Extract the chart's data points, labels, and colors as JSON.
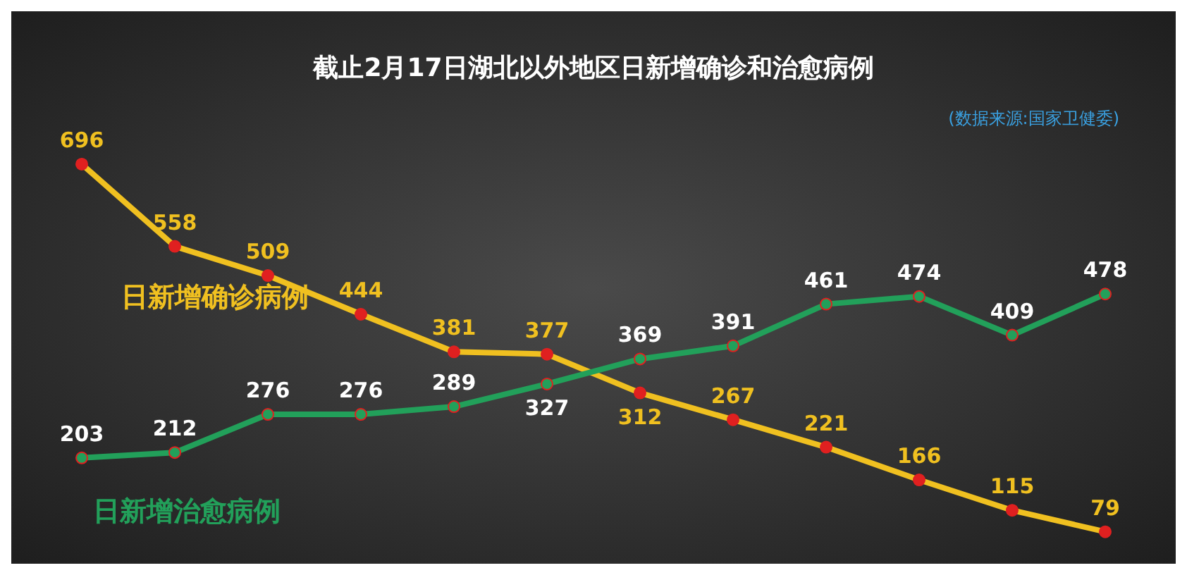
{
  "chart_data": {
    "type": "line",
    "title": "截止2月17日湖北以外地区日新增确诊和治愈病例",
    "annotations": [
      "(数据来源:国家卫健委)"
    ],
    "categories": [
      null,
      null,
      null,
      null,
      null,
      null,
      null,
      null,
      null,
      null,
      null,
      null
    ],
    "series": [
      {
        "name": "日新增确诊病例",
        "color": "#f0c020",
        "values": [
          696,
          558,
          509,
          444,
          381,
          377,
          312,
          267,
          221,
          166,
          115,
          79
        ]
      },
      {
        "name": "日新增治愈病例",
        "color": "#22a05a",
        "values": [
          203,
          212,
          276,
          276,
          289,
          327,
          369,
          391,
          461,
          474,
          409,
          478
        ]
      }
    ],
    "data_labels": true,
    "marker": "circle",
    "legend": false,
    "grid": false
  }
}
